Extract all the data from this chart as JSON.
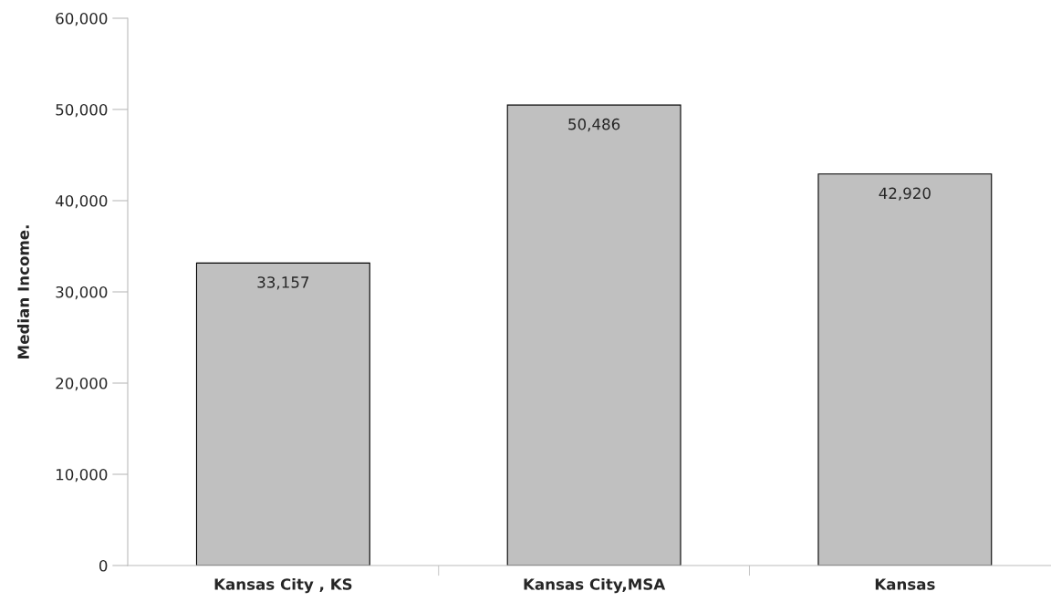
{
  "chart_data": {
    "type": "bar",
    "ylabel": "Median Income.",
    "categories": [
      "Kansas City , KS",
      "Kansas City,MSA",
      "Kansas"
    ],
    "values": [
      33157,
      50486,
      42920
    ],
    "color": "#c0c0c0",
    "ylim": [
      0,
      60000
    ],
    "yticks": [
      {
        "value": 0,
        "label": "0"
      },
      {
        "value": 10000,
        "label": "10,000"
      },
      {
        "value": 20000,
        "label": "20,000"
      },
      {
        "value": 30000,
        "label": "30,000"
      },
      {
        "value": 40000,
        "label": "40,000"
      },
      {
        "value": 50000,
        "label": "50,000"
      },
      {
        "value": 60000,
        "label": "60,000"
      }
    ],
    "value_labels": [
      "33,157",
      "50,486",
      "42,920"
    ],
    "grid": false,
    "legend": false
  }
}
